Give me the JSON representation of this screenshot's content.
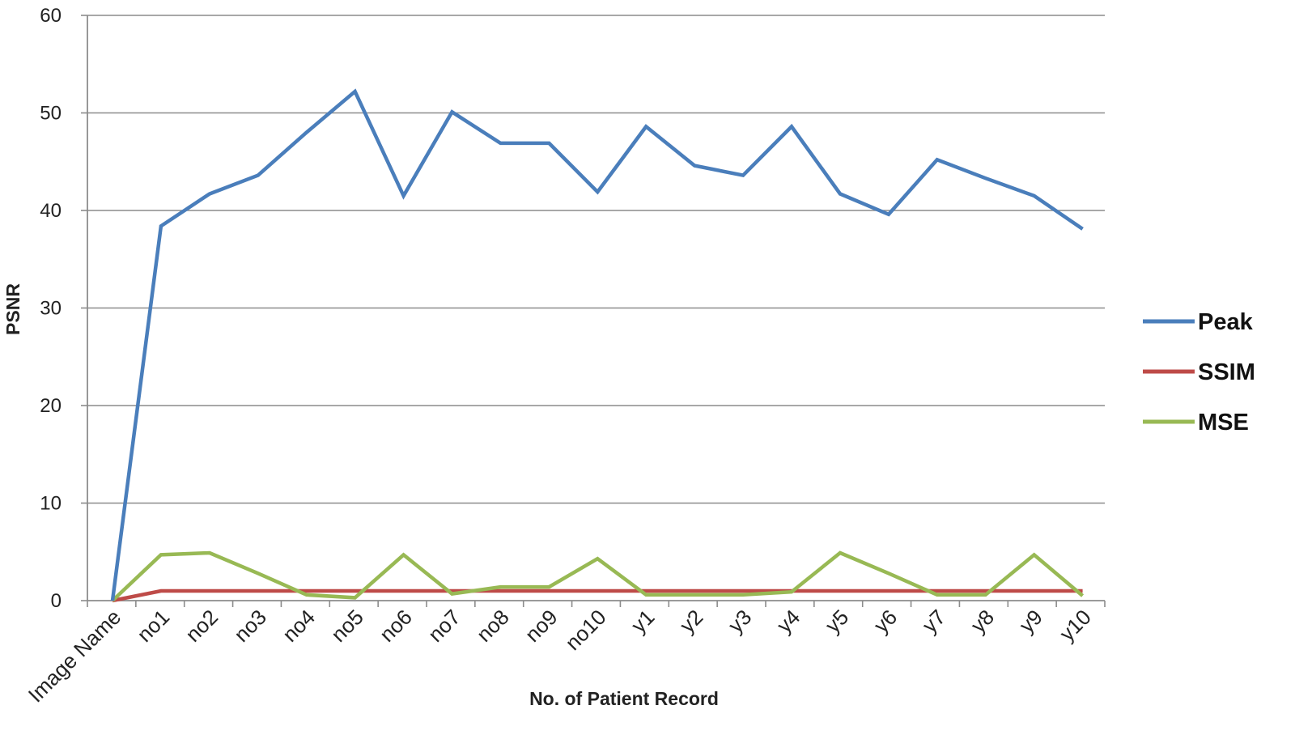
{
  "chart_data": {
    "type": "line",
    "categories": [
      "Image Name",
      "no1",
      "no2",
      "no3",
      "no4",
      "no5",
      "no6",
      "no7",
      "no8",
      "no9",
      "no10",
      "y1",
      "y2",
      "y3",
      "y4",
      "y5",
      "y6",
      "y7",
      "y8",
      "y9",
      "y10"
    ],
    "series": [
      {
        "name": "Peak",
        "color": "#4a7ebb",
        "values": [
          0,
          38.4,
          41.7,
          43.6,
          48.0,
          52.2,
          41.5,
          50.1,
          46.9,
          46.9,
          41.9,
          48.6,
          44.6,
          43.6,
          48.6,
          41.7,
          39.6,
          45.2,
          43.3,
          41.5,
          38.1
        ]
      },
      {
        "name": "SSIM",
        "color": "#be4b48",
        "values": [
          0,
          1,
          1,
          1,
          1,
          1,
          1,
          1,
          1,
          1,
          1,
          1,
          1,
          1,
          1,
          1,
          1,
          1,
          1,
          1,
          1
        ]
      },
      {
        "name": "MSE",
        "color": "#98b954",
        "values": [
          0,
          4.7,
          4.9,
          2.8,
          0.6,
          0.3,
          4.7,
          0.7,
          1.4,
          1.4,
          4.3,
          0.6,
          0.6,
          0.6,
          0.9,
          4.9,
          2.8,
          0.6,
          0.6,
          4.7,
          0.5
        ]
      }
    ],
    "title": "",
    "xlabel": "No. of Patient Record",
    "ylabel": "PSNR",
    "ylim": [
      0,
      60
    ],
    "yticks": [
      "0",
      "10",
      "20",
      "30",
      "40",
      "50",
      "60"
    ],
    "grid": true,
    "legend_position": "right"
  }
}
